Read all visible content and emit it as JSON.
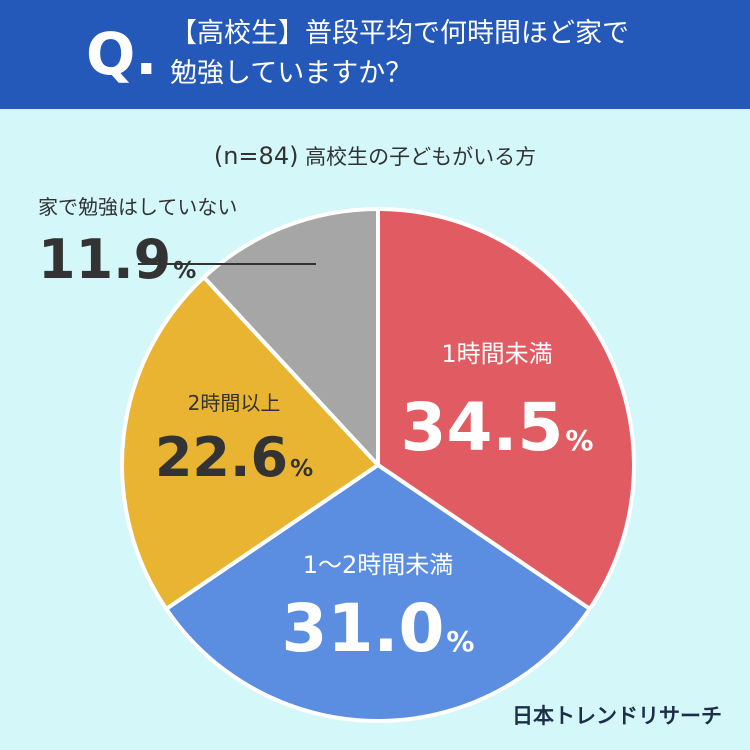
{
  "header": {
    "q_mark": "Q.",
    "question_line1": "【高校生】普段平均で何時間ほど家で",
    "question_line2": "勉強していますか？"
  },
  "subtitle": {
    "sample": "(n=84)",
    "population": "高校生の子どもがいる方"
  },
  "chart_data": {
    "type": "pie",
    "unit": "%",
    "slices": [
      {
        "label": "1時間未満",
        "value": 34.5,
        "display": "34.5",
        "color": "#e15c62"
      },
      {
        "label": "1〜2時間未満",
        "value": 31.0,
        "display": "31.0",
        "color": "#5b8ee0"
      },
      {
        "label": "2時間以上",
        "value": 22.6,
        "display": "22.6",
        "color": "#e8b432"
      },
      {
        "label": "家で勉強はしていない",
        "value": 11.9,
        "display": "11.9",
        "color": "#a6a6a6"
      }
    ]
  },
  "brand": "日本トレンドリサーチ"
}
